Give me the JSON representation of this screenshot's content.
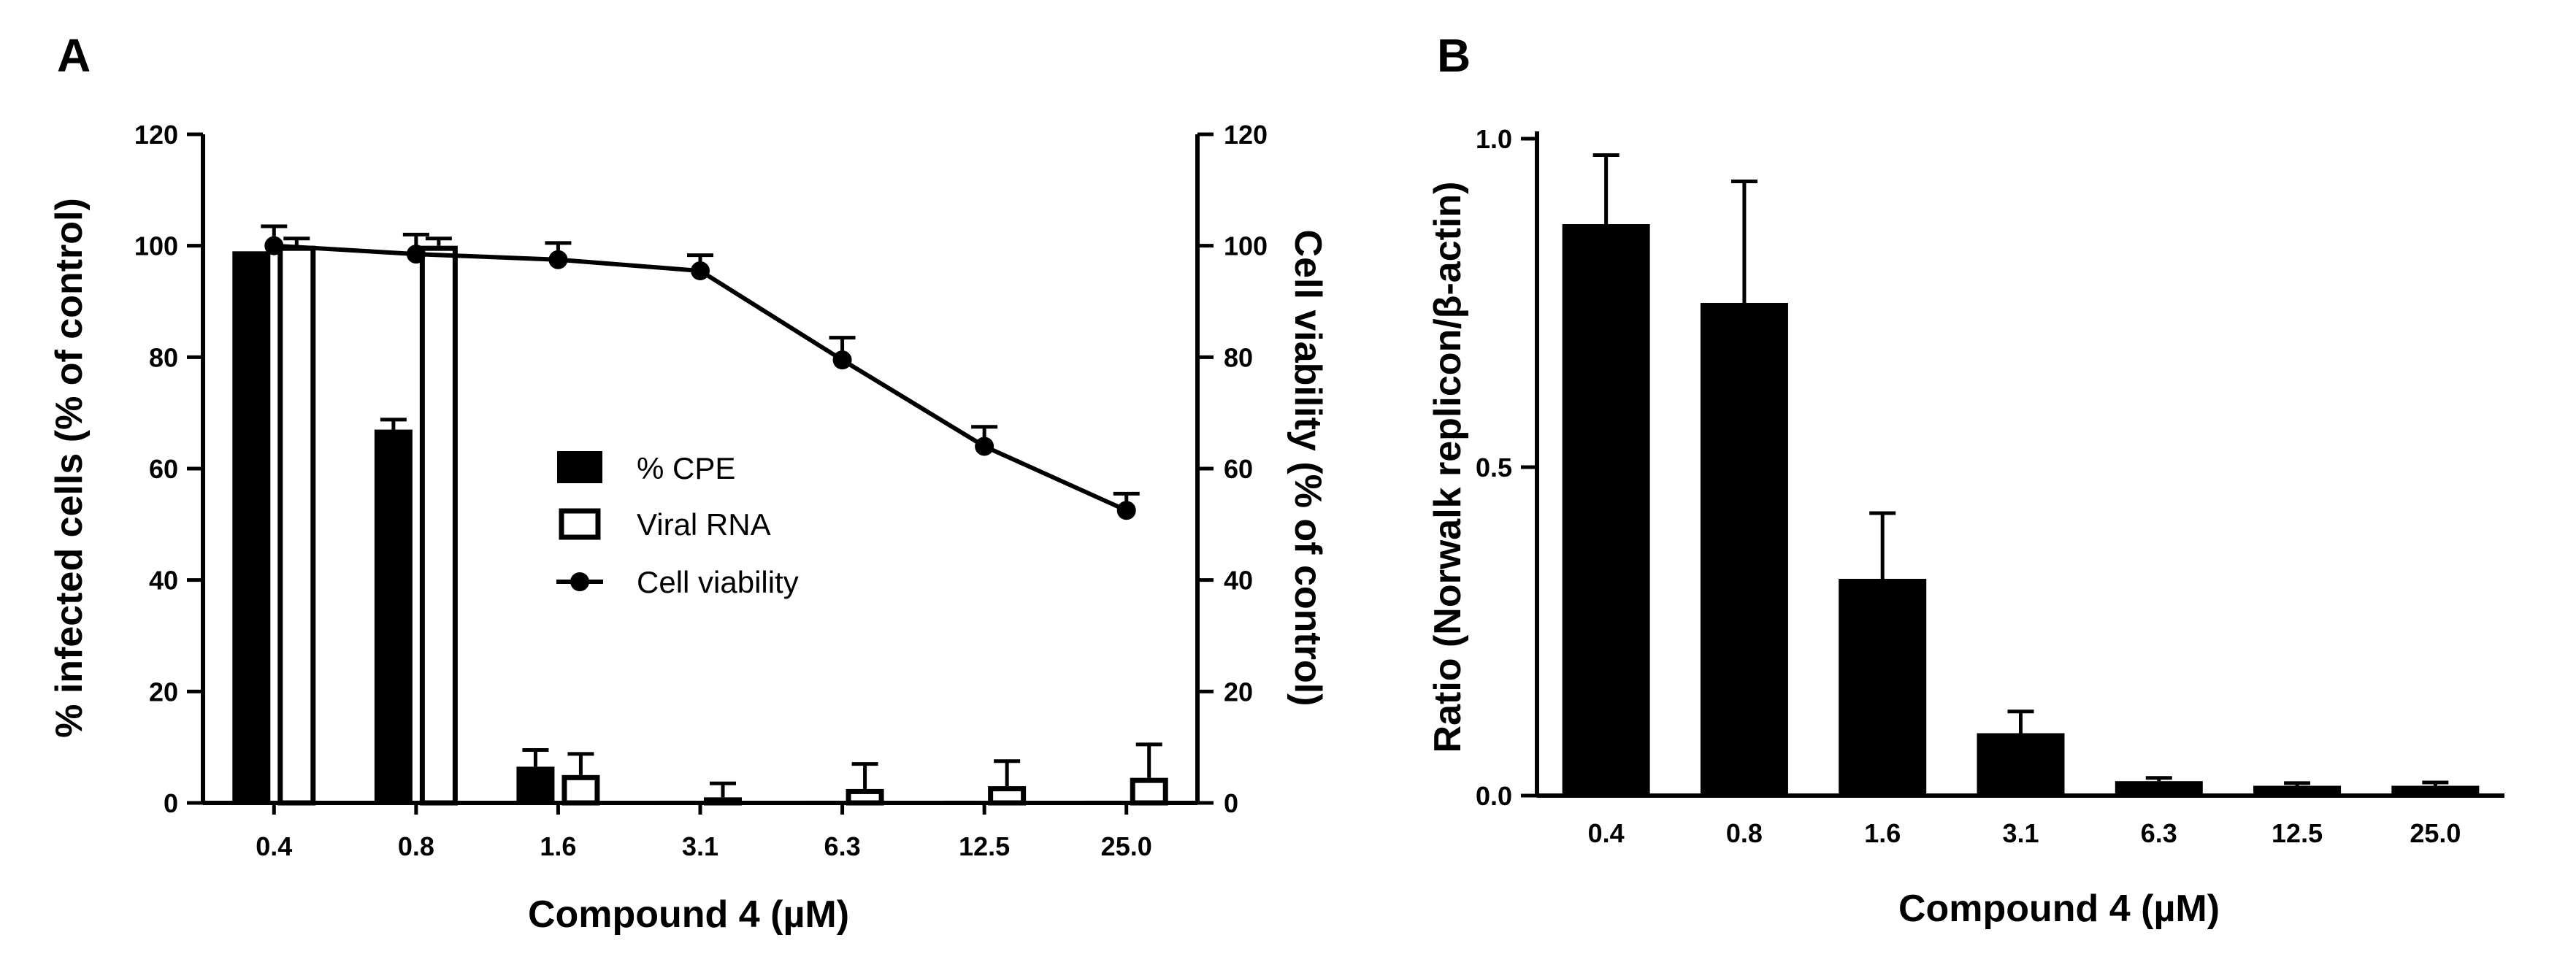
{
  "chart_data": [
    {
      "panel_label": "A",
      "type": "bar",
      "categories": [
        "0.4",
        "0.8",
        "1.6",
        "3.1",
        "6.3",
        "12.5",
        "25.0"
      ],
      "series": [
        {
          "name": "% CPE",
          "kind": "bar",
          "fill": "#000000",
          "axis": "left",
          "values": [
            99,
            67,
            6.5,
            0.4,
            0.4,
            0.4,
            0.4
          ],
          "errors": [
            0,
            1.8,
            3.0,
            0,
            0,
            0,
            0
          ]
        },
        {
          "name": "Viral RNA",
          "kind": "bar",
          "fill": "#ffffff",
          "axis": "left",
          "values": [
            100,
            100,
            5,
            1,
            2.5,
            3,
            4.5
          ],
          "errors": [
            1.3,
            1.3,
            3.8,
            2.5,
            4.5,
            4.5,
            6
          ]
        },
        {
          "name": "Cell viability",
          "kind": "line",
          "axis": "right",
          "values": [
            100,
            98.5,
            97.5,
            95.5,
            79.5,
            64,
            52.5
          ],
          "errors": [
            3.5,
            3.5,
            3,
            2.8,
            4,
            3.5,
            3
          ]
        }
      ],
      "xlabel": "Compound 4 (µM)",
      "ylabel": "% infected cells (% of control)",
      "y2label": "Cell viability (% of control)",
      "ylim": [
        0,
        120
      ],
      "y2lim": [
        0,
        120
      ],
      "yticks": [
        0,
        20,
        40,
        60,
        80,
        100,
        120
      ],
      "y2ticks": [
        0,
        20,
        40,
        60,
        80,
        100,
        120
      ],
      "legend": [
        "% CPE",
        "Viral RNA",
        "Cell viability"
      ],
      "legend_position": "center"
    },
    {
      "panel_label": "B",
      "type": "bar",
      "categories": [
        "0.4",
        "0.8",
        "1.6",
        "3.1",
        "6.3",
        "12.5",
        "25.0"
      ],
      "series": [
        {
          "name": "Ratio",
          "kind": "bar",
          "fill": "#000000",
          "values": [
            0.87,
            0.75,
            0.33,
            0.095,
            0.022,
            0.015,
            0.015
          ],
          "errors": [
            0.105,
            0.185,
            0.1,
            0.033,
            0.005,
            0.004,
            0.005
          ]
        }
      ],
      "xlabel": "Compound 4 (µM)",
      "ylabel": "Ratio (Norwalk replicon/β-actin)",
      "ylim": [
        0,
        1.0
      ],
      "yticks": [
        "0.0",
        "0.5",
        "1.0"
      ],
      "ytick_values": [
        0,
        0.5,
        1.0
      ]
    }
  ]
}
